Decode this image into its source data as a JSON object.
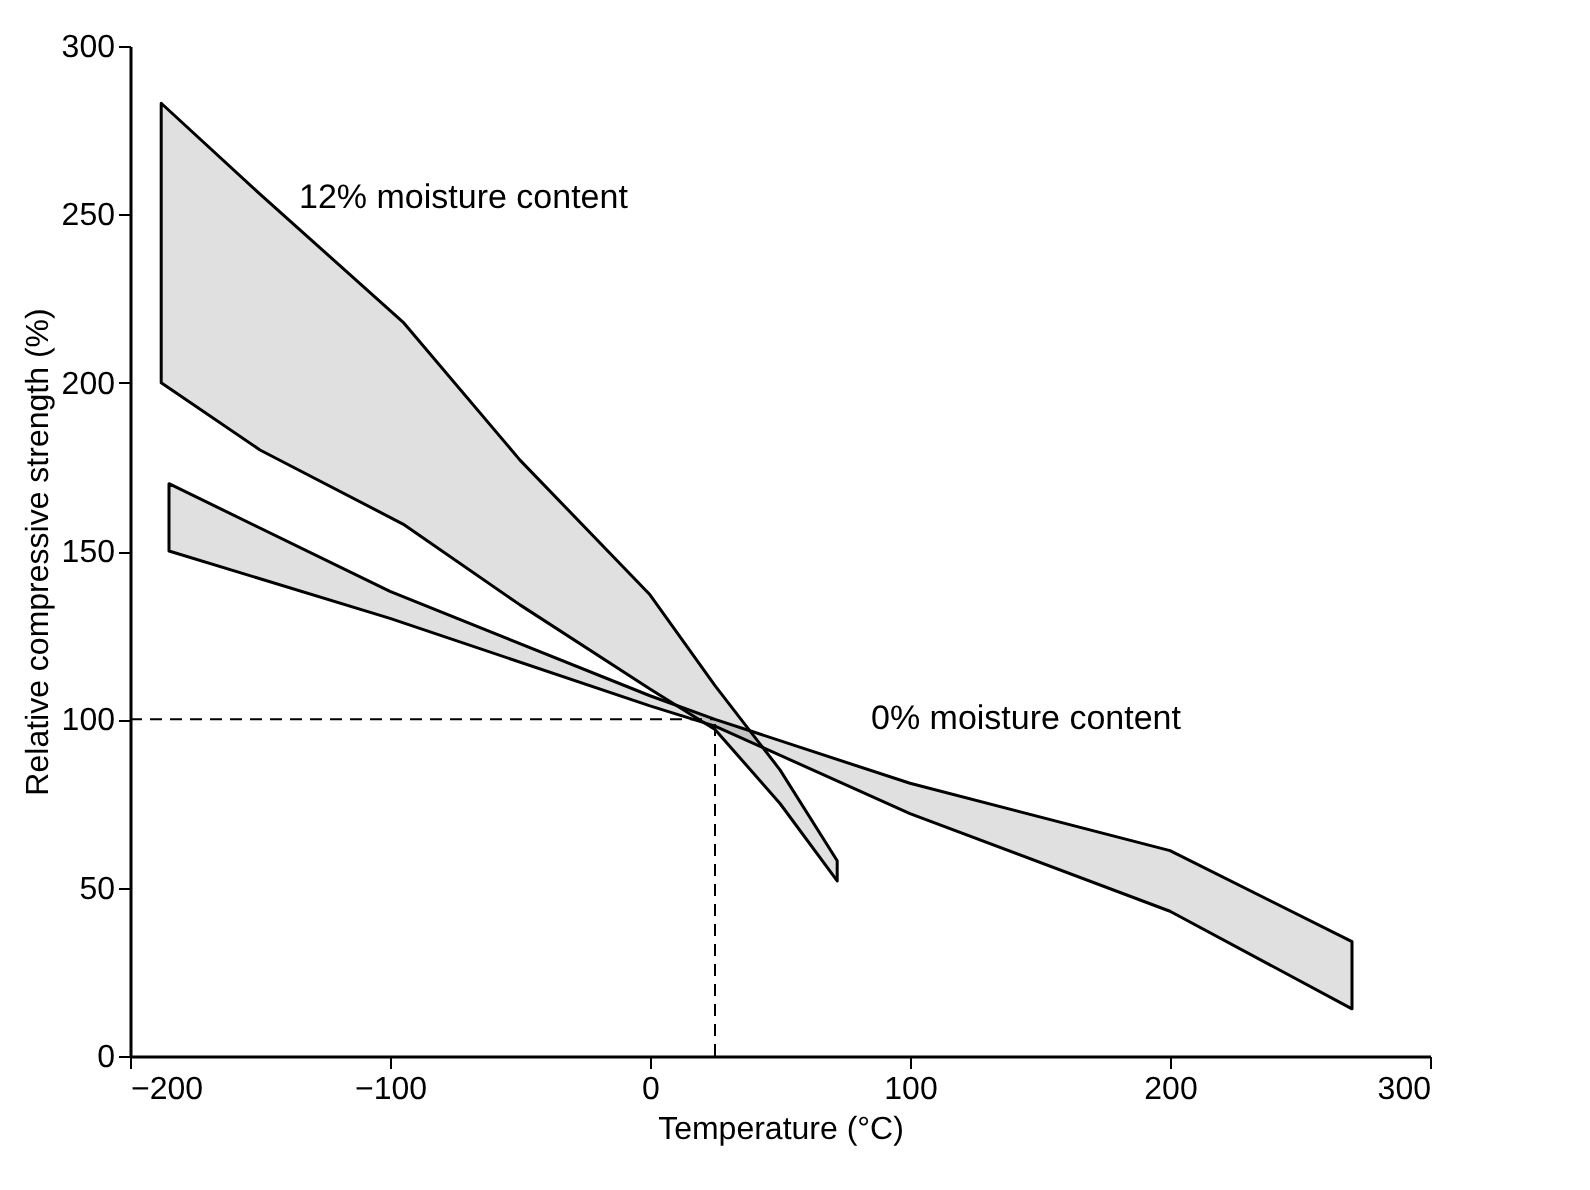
{
  "chart_data": {
    "type": "area",
    "xlabel": "Temperature (°C)",
    "ylabel": "Relative compressive strength (%)",
    "xlim": [
      -200,
      300
    ],
    "xticks": [
      -200,
      -100,
      0,
      100,
      200,
      300
    ],
    "ylim": [
      0,
      300
    ],
    "yticks": [
      0,
      50,
      100,
      150,
      200,
      250,
      300
    ],
    "grid": false,
    "series": [
      {
        "name": "12% moisture content",
        "color": "#000000",
        "x": [
          -188,
          -150,
          -95,
          -50,
          0,
          25,
          50,
          72
        ],
        "upper": [
          283,
          256,
          218,
          177,
          137,
          110,
          85,
          58
        ],
        "lower": [
          200,
          180,
          158,
          134,
          109,
          97,
          75,
          52
        ],
        "values": [
          null,
          null,
          null,
          null,
          null,
          null,
          null,
          null
        ]
      },
      {
        "name": "0% moisture content",
        "color": "#000000",
        "x": [
          -185,
          -100,
          0,
          25,
          100,
          200,
          270
        ],
        "upper": [
          170,
          138,
          107,
          100,
          81,
          61,
          34
        ],
        "lower": [
          150,
          130,
          104,
          98,
          72,
          43,
          14
        ],
        "values": [
          null,
          null,
          null,
          null,
          null,
          null,
          null
        ]
      }
    ],
    "ref_lines": [
      {
        "axis": "y",
        "value": 100,
        "line_style": "dashed"
      },
      {
        "axis": "x",
        "value": 25,
        "line_style": "dashed"
      }
    ]
  }
}
